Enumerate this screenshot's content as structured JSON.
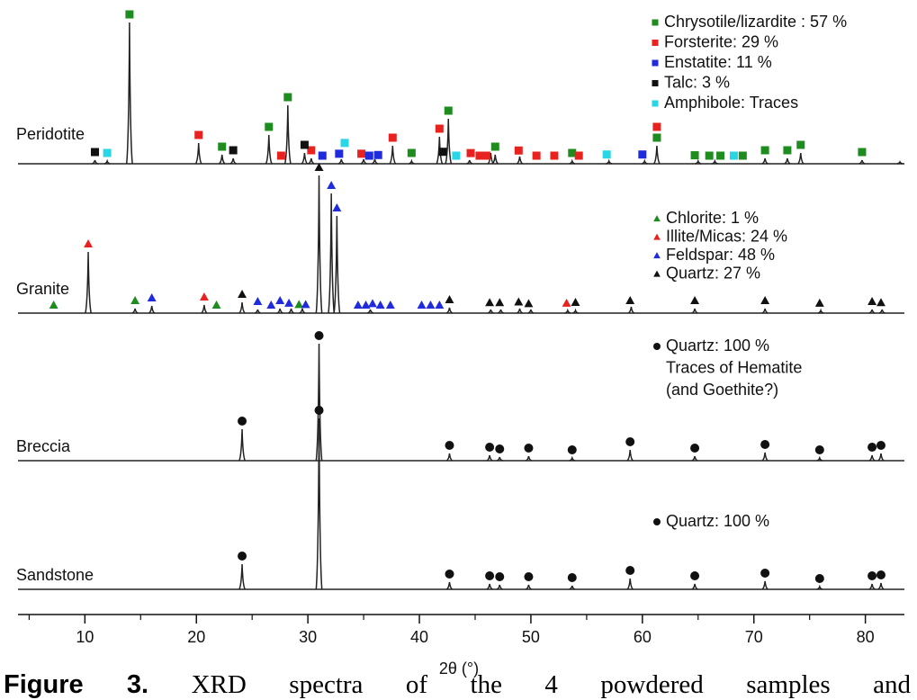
{
  "chart_data": {
    "type": "line",
    "x_label": "2θ (°)",
    "xlim": [
      4,
      83.5
    ],
    "xticks": [
      10,
      20,
      30,
      40,
      50,
      60,
      70,
      80
    ],
    "xminorticks": [
      5,
      15,
      25,
      35,
      45,
      55,
      65,
      75
    ],
    "samples": [
      {
        "name": "Peridotite",
        "peaks": {
          "x": [
            10.9,
            12.0,
            14.0,
            20.2,
            22.3,
            23.3,
            26.5,
            28.2,
            29.7,
            30.3,
            33.0,
            35.0,
            36.0,
            37.6,
            39.3,
            41.8,
            42.6,
            44.5,
            46.4,
            46.8,
            49.0,
            53.7,
            57.0,
            60.2,
            61.3,
            65.0,
            66.5,
            71.0,
            73.0,
            74.2,
            79.7,
            83.1
          ],
          "values": [
            4,
            3,
            157,
            23,
            10,
            6,
            32,
            65,
            12,
            6,
            5,
            5,
            5,
            20,
            3,
            30,
            50,
            4,
            12,
            10,
            8,
            3,
            3,
            3,
            20,
            3,
            3,
            6,
            6,
            12,
            4,
            2
          ]
        },
        "series": [
          {
            "name": "Chrysotile/lizardite : 57 %",
            "marker": "square",
            "color": "#1e8c1e",
            "x": [
              14.0,
              22.3,
              26.5,
              28.2,
              39.3,
              42.6,
              46.8,
              53.7,
              61.3,
              64.7,
              66.0,
              67.0,
              69.0,
              71.0,
              73.0,
              74.2,
              79.7
            ]
          },
          {
            "name": "Forsterite: 29 %",
            "marker": "square",
            "color": "#e8231f",
            "x": [
              20.2,
              27.6,
              30.3,
              34.8,
              37.6,
              41.8,
              44.6,
              45.4,
              46.0,
              48.9,
              50.5,
              52.1,
              54.3,
              61.3
            ]
          },
          {
            "name": "Enstatite: 11 %",
            "marker": "square",
            "color": "#1f2bdc",
            "x": [
              31.3,
              32.8,
              35.5,
              36.3,
              60.0
            ]
          },
          {
            "name": "Talc: 3 %",
            "marker": "square",
            "color": "#111111",
            "x": [
              10.9,
              23.3,
              29.7,
              42.1
            ]
          },
          {
            "name": "Amphibole: Traces",
            "marker": "square",
            "color": "#29d6e6",
            "x": [
              12.0,
              33.3,
              43.3,
              56.8,
              68.2
            ]
          }
        ]
      },
      {
        "name": "Granite",
        "peaks": {
          "x": [
            10.3,
            14.5,
            16.0,
            20.7,
            24.1,
            25.5,
            27.5,
            28.5,
            29.5,
            31.0,
            32.1,
            32.6,
            35.6,
            42.7,
            46.4,
            47.3,
            49.0,
            50.0,
            53.3,
            54.0,
            59.0,
            64.7,
            71.0,
            76.0,
            80.6,
            81.5
          ],
          "values": [
            68,
            5,
            8,
            9,
            12,
            4,
            5,
            5,
            5,
            153,
            133,
            108,
            4,
            6,
            4,
            4,
            5,
            4,
            3,
            3,
            7,
            5,
            5,
            3,
            4,
            4
          ]
        },
        "series": [
          {
            "name": "Chlorite: 1 %",
            "marker": "triangle",
            "color": "#1e8c1e",
            "x": [
              7.2,
              14.5,
              21.8,
              29.2
            ]
          },
          {
            "name": "Illite/Micas: 24 %",
            "marker": "triangle",
            "color": "#e8231f",
            "x": [
              10.3,
              20.7,
              53.2
            ]
          },
          {
            "name": "Feldspar: 48 %",
            "marker": "triangle",
            "color": "#1f2bdc",
            "x": [
              16.0,
              25.5,
              26.7,
              27.5,
              28.3,
              29.8,
              32.1,
              32.6,
              34.5,
              35.2,
              35.8,
              36.5,
              37.4,
              40.2,
              41.0,
              41.8
            ]
          },
          {
            "name": "Quartz: 27 %",
            "marker": "triangle",
            "color": "#111111",
            "x": [
              24.1,
              31.0,
              42.7,
              46.3,
              47.2,
              48.9,
              49.8,
              54.0,
              58.9,
              64.7,
              71.0,
              75.9,
              80.6,
              81.4
            ]
          }
        ]
      },
      {
        "name": "Breccia",
        "peaks": {
          "x": [
            24.1,
            31.0,
            42.7,
            46.3,
            47.2,
            49.8,
            53.7,
            58.9,
            64.7,
            71.0,
            75.9,
            80.6,
            81.4
          ],
          "values": [
            35,
            130,
            8,
            6,
            4,
            5,
            3,
            12,
            5,
            9,
            3,
            6,
            8
          ]
        },
        "series": [
          {
            "name": "Quartz: 100 %",
            "marker": "circle",
            "color": "#111111",
            "x": [
              24.1,
              31.0,
              42.7,
              46.3,
              47.2,
              49.8,
              53.7,
              58.9,
              64.7,
              71.0,
              75.9,
              80.6,
              81.4
            ]
          }
        ],
        "notes": [
          "Traces of Hematite",
          "(and Goethite?)"
        ]
      },
      {
        "name": "Sandstone",
        "peaks": {
          "x": [
            24.1,
            31.0,
            42.7,
            46.3,
            47.2,
            49.8,
            53.7,
            58.9,
            64.7,
            71.0,
            75.9,
            80.6,
            81.4
          ],
          "values": [
            28,
            190,
            8,
            6,
            5,
            5,
            4,
            12,
            6,
            9,
            3,
            6,
            7
          ]
        },
        "series": [
          {
            "name": "Quartz: 100 %",
            "marker": "circle",
            "color": "#111111",
            "x": [
              24.1,
              31.0,
              42.7,
              46.3,
              47.2,
              49.8,
              53.7,
              58.9,
              64.7,
              71.0,
              75.9,
              80.6,
              81.4
            ]
          }
        ]
      }
    ],
    "caption": {
      "label": "Figure 3.",
      "text": "XRD spectra of the 4 powdered samples and"
    }
  }
}
